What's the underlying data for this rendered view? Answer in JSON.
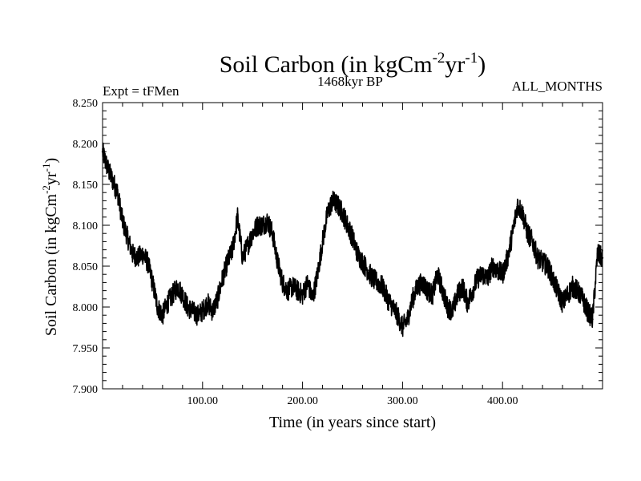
{
  "chart_data": {
    "type": "line",
    "title_main": "Soil Carbon (in kgCm",
    "title_exp1": "-2",
    "title_mid": "yr",
    "title_exp2": "-1",
    "title_close": ")",
    "subtitle_left": "Expt = tFMen",
    "subtitle_center": "1468kyr BP",
    "subtitle_right": "ALL_MONTHS",
    "xlabel": "Time (in years since start)",
    "ylabel_main": "Soil Carbon (in kgCm",
    "ylabel_exp1": "-2",
    "ylabel_mid": "yr",
    "ylabel_exp2": "-1",
    "ylabel_close": ")",
    "xlim": [
      0,
      500
    ],
    "ylim": [
      7.9,
      8.25
    ],
    "xticks": [
      {
        "value": 100,
        "label": "100.00"
      },
      {
        "value": 200,
        "label": "200.00"
      },
      {
        "value": 300,
        "label": "300.00"
      },
      {
        "value": 400,
        "label": "400.00"
      }
    ],
    "yticks": [
      {
        "value": 7.9,
        "label": "7.900"
      },
      {
        "value": 7.95,
        "label": "7.950"
      },
      {
        "value": 8.0,
        "label": "8.000"
      },
      {
        "value": 8.05,
        "label": "8.050"
      },
      {
        "value": 8.1,
        "label": "8.100"
      },
      {
        "value": 8.15,
        "label": "8.150"
      },
      {
        "value": 8.2,
        "label": "8.200"
      },
      {
        "value": 8.25,
        "label": "8.250"
      }
    ],
    "series": [
      {
        "name": "Soil Carbon",
        "color": "#000000",
        "points": [
          [
            0,
            8.19
          ],
          [
            5,
            8.17
          ],
          [
            10,
            8.155
          ],
          [
            15,
            8.14
          ],
          [
            20,
            8.105
          ],
          [
            25,
            8.085
          ],
          [
            30,
            8.065
          ],
          [
            35,
            8.06
          ],
          [
            40,
            8.065
          ],
          [
            45,
            8.055
          ],
          [
            50,
            8.03
          ],
          [
            55,
            8.0
          ],
          [
            60,
            7.99
          ],
          [
            65,
            8.005
          ],
          [
            70,
            8.015
          ],
          [
            75,
            8.025
          ],
          [
            80,
            8.015
          ],
          [
            85,
            8.0
          ],
          [
            90,
            7.995
          ],
          [
            95,
            7.99
          ],
          [
            100,
            7.995
          ],
          [
            105,
            8.005
          ],
          [
            110,
            7.995
          ],
          [
            115,
            8.01
          ],
          [
            120,
            8.035
          ],
          [
            125,
            8.055
          ],
          [
            130,
            8.07
          ],
          [
            135,
            8.11
          ],
          [
            140,
            8.06
          ],
          [
            145,
            8.075
          ],
          [
            150,
            8.09
          ],
          [
            155,
            8.1
          ],
          [
            160,
            8.1
          ],
          [
            165,
            8.105
          ],
          [
            170,
            8.09
          ],
          [
            175,
            8.055
          ],
          [
            180,
            8.03
          ],
          [
            185,
            8.02
          ],
          [
            190,
            8.025
          ],
          [
            195,
            8.02
          ],
          [
            200,
            8.015
          ],
          [
            205,
            8.03
          ],
          [
            210,
            8.01
          ],
          [
            215,
            8.04
          ],
          [
            220,
            8.08
          ],
          [
            225,
            8.115
          ],
          [
            230,
            8.13
          ],
          [
            235,
            8.125
          ],
          [
            240,
            8.115
          ],
          [
            245,
            8.1
          ],
          [
            250,
            8.085
          ],
          [
            255,
            8.065
          ],
          [
            260,
            8.055
          ],
          [
            265,
            8.045
          ],
          [
            270,
            8.035
          ],
          [
            275,
            8.03
          ],
          [
            280,
            8.025
          ],
          [
            285,
            8.01
          ],
          [
            290,
            8.0
          ],
          [
            295,
            7.99
          ],
          [
            300,
            7.975
          ],
          [
            305,
            7.985
          ],
          [
            310,
            8.01
          ],
          [
            315,
            8.025
          ],
          [
            320,
            8.03
          ],
          [
            325,
            8.02
          ],
          [
            330,
            8.015
          ],
          [
            335,
            8.04
          ],
          [
            340,
            8.02
          ],
          [
            345,
            8.0
          ],
          [
            350,
            7.995
          ],
          [
            355,
            8.015
          ],
          [
            360,
            8.025
          ],
          [
            365,
            8.005
          ],
          [
            370,
            8.02
          ],
          [
            375,
            8.035
          ],
          [
            380,
            8.04
          ],
          [
            385,
            8.035
          ],
          [
            390,
            8.05
          ],
          [
            395,
            8.045
          ],
          [
            400,
            8.04
          ],
          [
            405,
            8.06
          ],
          [
            410,
            8.09
          ],
          [
            415,
            8.125
          ],
          [
            420,
            8.115
          ],
          [
            425,
            8.09
          ],
          [
            430,
            8.08
          ],
          [
            435,
            8.06
          ],
          [
            440,
            8.055
          ],
          [
            445,
            8.05
          ],
          [
            450,
            8.035
          ],
          [
            455,
            8.02
          ],
          [
            460,
            8.005
          ],
          [
            465,
            8.015
          ],
          [
            470,
            8.025
          ],
          [
            475,
            8.02
          ],
          [
            480,
            8.01
          ],
          [
            485,
            7.995
          ],
          [
            490,
            7.985
          ],
          [
            495,
            8.065
          ],
          [
            500,
            8.06
          ]
        ]
      }
    ]
  }
}
